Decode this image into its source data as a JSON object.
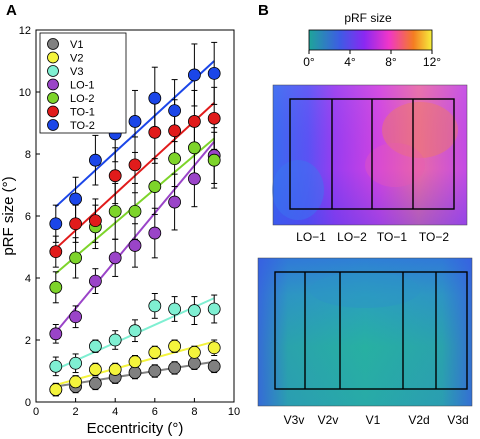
{
  "panel_labels": {
    "a": "A",
    "b": "B"
  },
  "chart_data": [
    {
      "type": "scatter",
      "xlabel": "Eccentricity (°)",
      "ylabel": "pRF size (°)",
      "xlim": [
        0,
        10
      ],
      "ylim": [
        0,
        12
      ],
      "xticks": [
        0,
        2,
        4,
        6,
        8,
        10
      ],
      "yticks": [
        0,
        2,
        4,
        6,
        8,
        10,
        12
      ],
      "x": [
        1,
        2,
        3,
        4,
        5,
        6,
        7,
        8,
        9
      ],
      "legend": "top-left",
      "fit_lines": true,
      "error_bars": true,
      "series": [
        {
          "name": "V1",
          "color": "#808080",
          "values": [
            0.4,
            0.5,
            0.6,
            0.8,
            0.95,
            1.0,
            1.1,
            1.25,
            1.15
          ],
          "errors": [
            0.2,
            0.2,
            0.2,
            0.2,
            0.2,
            0.2,
            0.2,
            0.2,
            0.2
          ],
          "fit": [
            0.5,
            1.3
          ]
        },
        {
          "name": "V2",
          "color": "#f4f43c",
          "values": [
            0.4,
            0.65,
            1.05,
            1.05,
            1.3,
            1.6,
            1.8,
            1.6,
            1.75
          ],
          "errors": [
            0.2,
            0.2,
            0.2,
            0.2,
            0.2,
            0.2,
            0.2,
            0.2,
            0.25
          ],
          "fit": [
            0.55,
            1.95
          ]
        },
        {
          "name": "V3",
          "color": "#7fefd2",
          "values": [
            1.15,
            1.25,
            1.8,
            2.0,
            2.3,
            3.1,
            3.0,
            2.95,
            3.0
          ],
          "errors": [
            0.3,
            0.3,
            0.2,
            0.3,
            0.35,
            0.4,
            0.4,
            0.45,
            0.45
          ],
          "fit": [
            1.05,
            3.35
          ]
        },
        {
          "name": "LO-1",
          "color": "#9a44c8",
          "values": [
            2.2,
            2.75,
            3.9,
            4.65,
            5.05,
            5.45,
            6.45,
            7.2,
            7.95
          ],
          "errors": [
            0.3,
            0.35,
            0.4,
            0.6,
            0.7,
            0.8,
            0.9,
            0.9,
            0.9
          ],
          "fit": [
            2.25,
            8.4
          ]
        },
        {
          "name": "LO-2",
          "color": "#7dd42a",
          "values": [
            3.7,
            4.65,
            5.65,
            6.15,
            6.15,
            6.95,
            7.85,
            8.2,
            7.8
          ],
          "errors": [
            0.5,
            0.65,
            0.7,
            0.9,
            0.9,
            0.9,
            0.9,
            0.9,
            0.9
          ],
          "fit": [
            4.15,
            8.5
          ]
        },
        {
          "name": "TO-1",
          "color": "#e11b1b",
          "values": [
            4.85,
            5.75,
            5.85,
            7.3,
            7.65,
            8.7,
            8.75,
            9.05,
            9.15
          ],
          "errors": [
            0.5,
            0.6,
            0.7,
            0.9,
            0.9,
            1.0,
            1.0,
            1.0,
            1.0
          ],
          "fit": [
            4.95,
            9.65
          ]
        },
        {
          "name": "TO-2",
          "color": "#1b46e8",
          "values": [
            5.75,
            6.55,
            7.8,
            8.65,
            9.05,
            9.8,
            9.4,
            10.55,
            10.6
          ],
          "errors": [
            0.6,
            0.7,
            0.8,
            0.9,
            1.0,
            1.0,
            1.0,
            1.0,
            1.0
          ],
          "fit": [
            6.3,
            11.0
          ]
        }
      ]
    },
    {
      "type": "heatmap",
      "title": "pRF size",
      "colorbar_ticks": [
        "0°",
        "4°",
        "8°",
        "12°"
      ],
      "colorscale": [
        "#1ea59a",
        "#3d5ce4",
        "#8a28f2",
        "#f036c8",
        "#f47d22",
        "#f6f03c"
      ],
      "map_top_labels": [
        "LO−1",
        "LO−2",
        "TO−1",
        "TO−2"
      ],
      "map_bottom_labels": [
        "V3v",
        "V2v",
        "V1",
        "V2d",
        "V3d"
      ]
    }
  ]
}
